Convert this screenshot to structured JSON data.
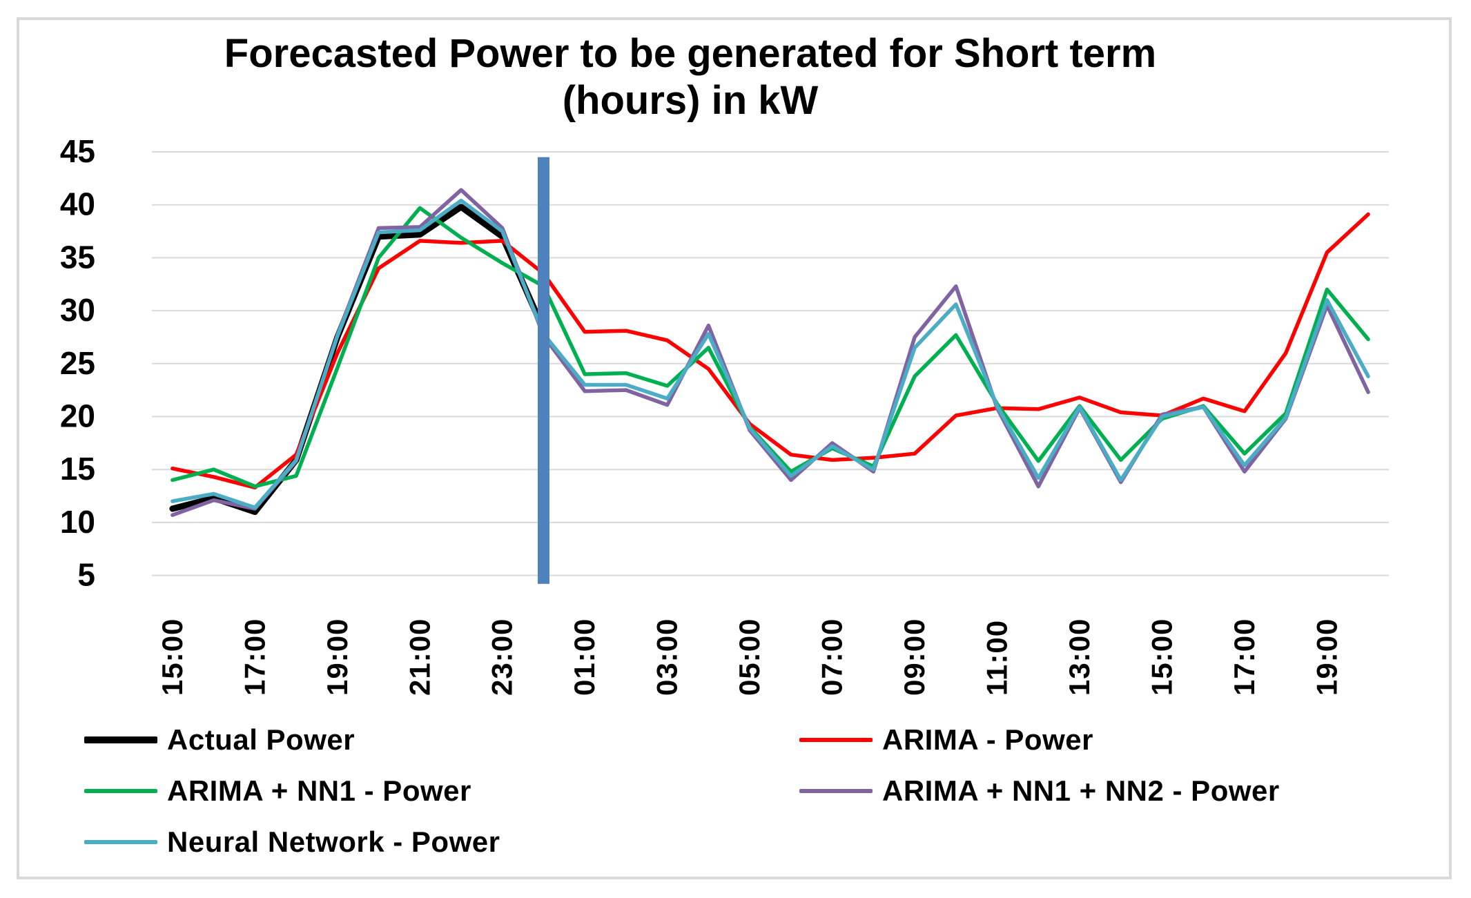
{
  "title": {
    "line1": "Forecasted Power to be generated for Short term",
    "line2": "(hours) in kW"
  },
  "colors": {
    "background": "#ffffff",
    "frame_border": "#d9d9d9",
    "gridline": "#d9d9d9",
    "axis_text": "#000000",
    "forecast_divider": "#4f81bd"
  },
  "chart_data": {
    "type": "line",
    "title": "Forecasted Power to be generated for Short term (hours) in kW",
    "xlabel": "",
    "ylabel": "",
    "ylim": [
      5,
      45
    ],
    "y_ticks": [
      5,
      10,
      15,
      20,
      25,
      30,
      35,
      40,
      45
    ],
    "grid": "horizontal",
    "legend_position": "bottom",
    "x_tick_labels": [
      "15:00",
      "17:00",
      "19:00",
      "21:00",
      "23:00",
      "01:00",
      "03:00",
      "05:00",
      "07:00",
      "09:00",
      "11:00",
      "13:00",
      "15:00",
      "17:00",
      "19:00"
    ],
    "categories": [
      "15:00",
      "16:00",
      "17:00",
      "18:00",
      "19:00",
      "20:00",
      "21:00",
      "22:00",
      "23:00",
      "00:00",
      "01:00",
      "02:00",
      "03:00",
      "04:00",
      "05:00",
      "06:00",
      "07:00",
      "08:00",
      "09:00",
      "10:00",
      "11:00",
      "12:00",
      "13:00",
      "14:00",
      "15:00",
      "16:00",
      "17:00",
      "18:00",
      "19:00",
      "20:00"
    ],
    "forecast_divider": {
      "at_category_index": 9,
      "value_top": 44.5,
      "value_bottom": 4.2,
      "color": "#4f81bd"
    },
    "series": [
      {
        "name": "Actual Power",
        "color": "#000000",
        "stroke_width": 9,
        "values": [
          11.3,
          12.3,
          11.0,
          15.9,
          27.5,
          37.0,
          37.2,
          39.8,
          37.0,
          28.2,
          null,
          null,
          null,
          null,
          null,
          null,
          null,
          null,
          null,
          null,
          null,
          null,
          null,
          null,
          null,
          null,
          null,
          null,
          null,
          null
        ]
      },
      {
        "name": "ARIMA - Power",
        "color": "#ff0000",
        "stroke_width": 5.5,
        "values": [
          15.1,
          14.3,
          13.3,
          16.4,
          26.0,
          34.0,
          36.6,
          36.4,
          36.6,
          33.5,
          28.0,
          28.1,
          27.2,
          24.5,
          19.3,
          16.4,
          15.9,
          16.1,
          16.5,
          20.1,
          20.8,
          20.7,
          21.8,
          20.4,
          20.1,
          21.7,
          20.5,
          26.0,
          35.5,
          39.1
        ]
      },
      {
        "name": "ARIMA + NN1 - Power",
        "color": "#00b050",
        "stroke_width": 5.5,
        "values": [
          14.0,
          15.0,
          13.4,
          14.4,
          24.6,
          35.0,
          39.7,
          36.9,
          34.5,
          32.3,
          24.0,
          24.1,
          22.9,
          26.5,
          19.0,
          14.8,
          17.0,
          15.3,
          23.8,
          27.7,
          21.2,
          15.8,
          21.0,
          15.9,
          19.8,
          21.0,
          16.5,
          20.3,
          32.0,
          27.3
        ]
      },
      {
        "name": "ARIMA + NN1 + NN2 - Power",
        "color": "#8064a2",
        "stroke_width": 5.5,
        "values": [
          10.7,
          12.1,
          11.3,
          15.8,
          27.7,
          37.8,
          37.9,
          41.4,
          37.8,
          27.6,
          22.4,
          22.5,
          21.1,
          28.6,
          18.7,
          14.0,
          17.5,
          14.8,
          27.5,
          32.3,
          20.8,
          13.4,
          20.8,
          13.8,
          20.2,
          20.9,
          14.8,
          19.8,
          30.5,
          22.3
        ]
      },
      {
        "name": "Neural Network - Power",
        "color": "#4bacc6",
        "stroke_width": 5.5,
        "values": [
          12.0,
          12.7,
          11.4,
          15.9,
          27.6,
          37.4,
          37.6,
          40.4,
          37.5,
          27.8,
          23.0,
          23.0,
          21.7,
          27.8,
          18.9,
          14.4,
          17.2,
          15.0,
          26.5,
          30.6,
          21.0,
          14.2,
          20.9,
          14.0,
          20.0,
          20.9,
          15.4,
          19.9,
          31.0,
          23.8
        ]
      }
    ]
  },
  "legend": {
    "rows": [
      {
        "left_series": 0,
        "right_series": 1
      },
      {
        "left_series": 2,
        "right_series": 3
      },
      {
        "left_series": 4,
        "right_series": null
      }
    ]
  }
}
